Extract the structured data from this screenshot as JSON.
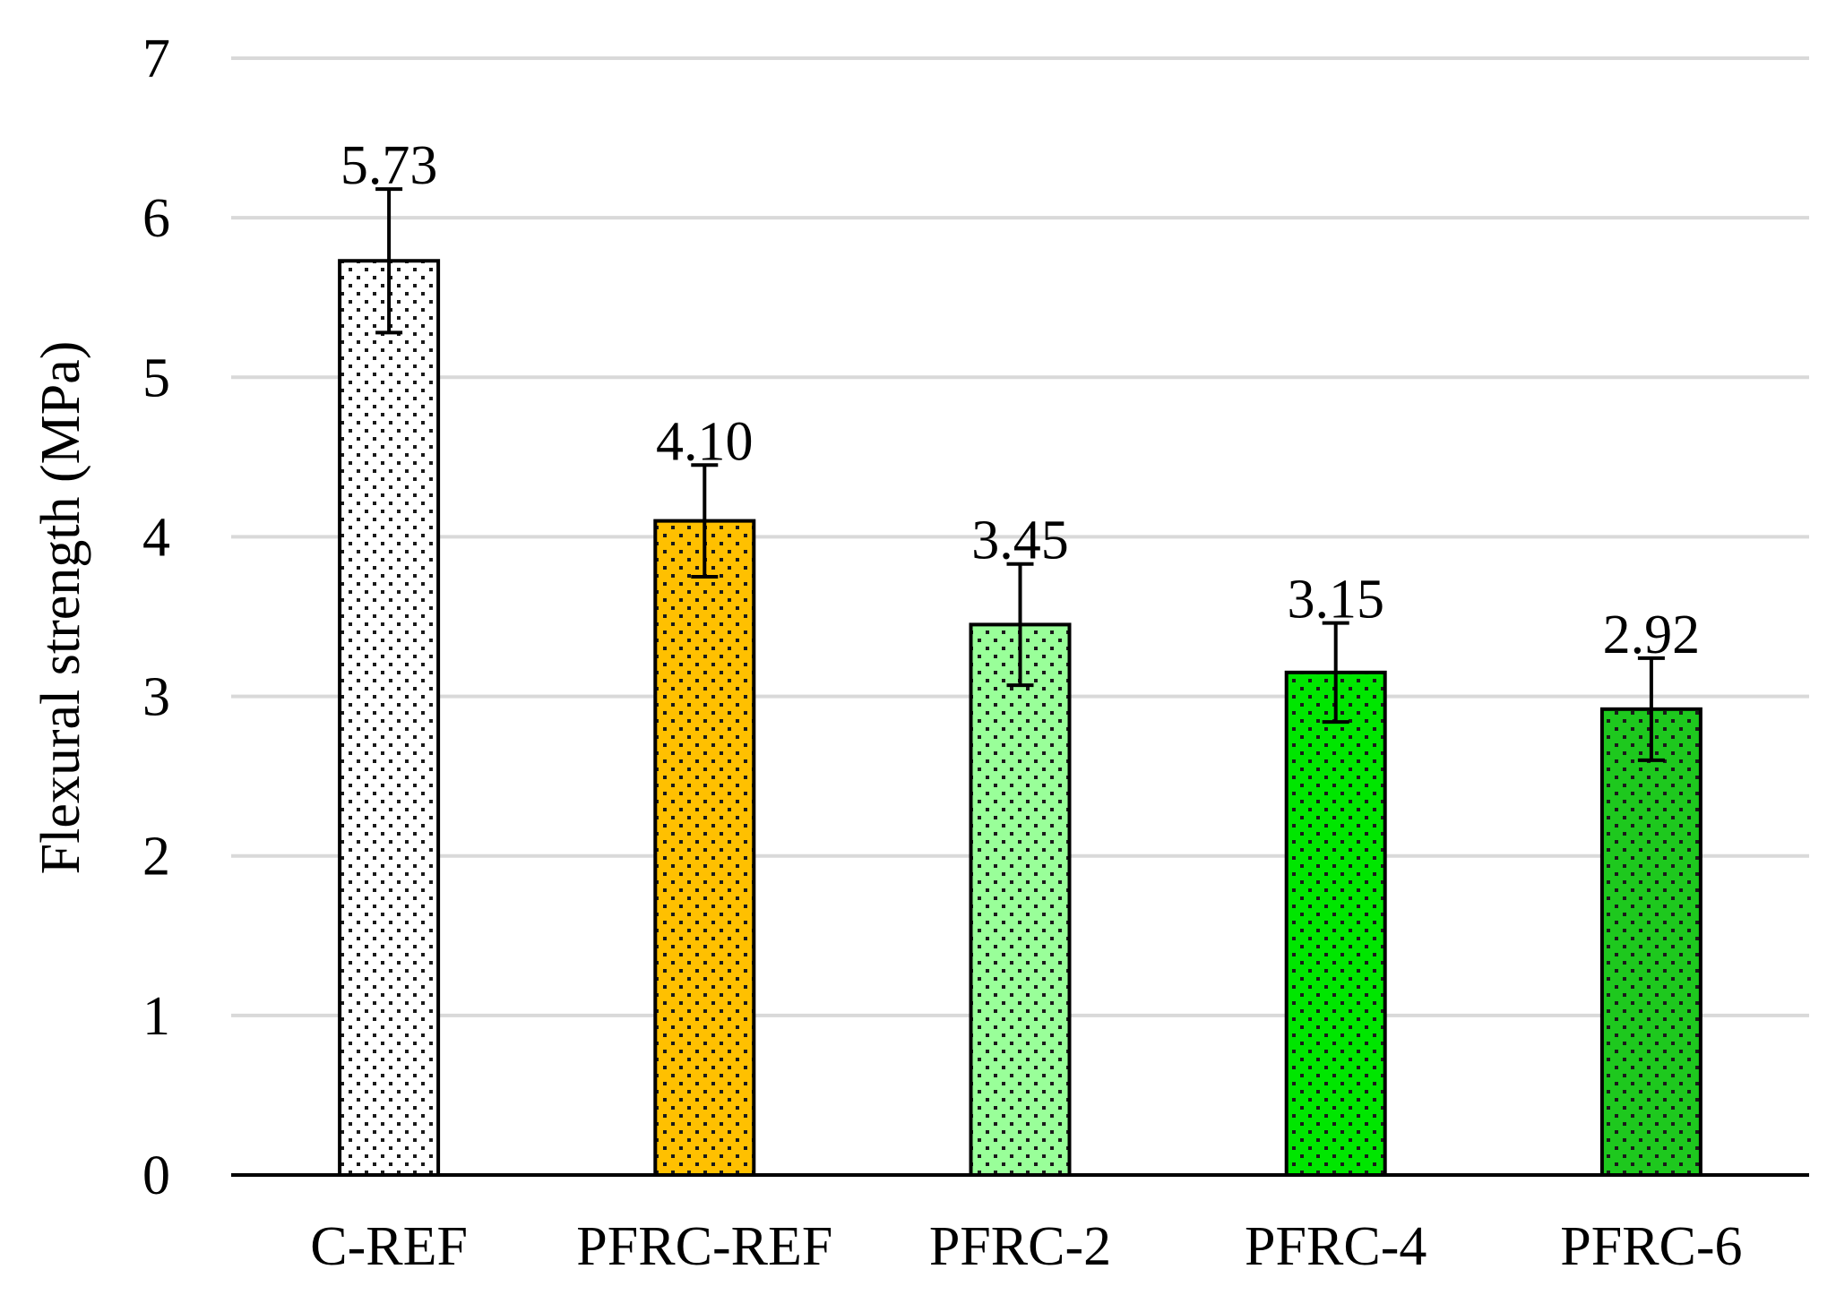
{
  "chart_data": {
    "type": "bar",
    "title": "",
    "xlabel": "",
    "ylabel": "Flexural strength (MPa)",
    "ylim": [
      0,
      7
    ],
    "yticks": [
      "0",
      "1",
      "2",
      "3",
      "4",
      "5",
      "6",
      "7"
    ],
    "grid": true,
    "legend": "none",
    "categories": [
      "C-REF",
      "PFRC-REF",
      "PFRC-2",
      "PFRC-4",
      "PFRC-6"
    ],
    "values": [
      5.73,
      4.1,
      3.45,
      3.15,
      2.92
    ],
    "value_labels": [
      "5.73",
      "4.10",
      "3.45",
      "3.15",
      "2.92"
    ],
    "error": [
      0.45,
      0.35,
      0.38,
      0.31,
      0.32
    ],
    "colors": [
      "#ffffff",
      "#ffc000",
      "#99ff99",
      "#00e600",
      "#1ec81e"
    ],
    "pattern": "dotted"
  }
}
